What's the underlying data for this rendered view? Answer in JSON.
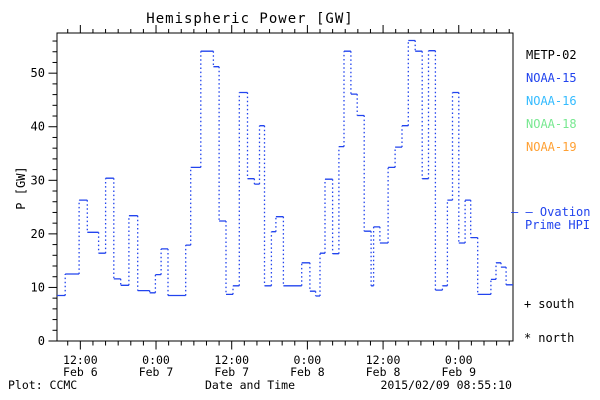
{
  "title": "Hemispheric Power [GW]",
  "axes": {
    "ylabel": "P [GW]",
    "xlabel": "Date and Time",
    "y_ticks": [
      0,
      10,
      20,
      30,
      40,
      50
    ],
    "y_minor_step": 2,
    "x_minor_step_hours": 2,
    "x_ticks": [
      {
        "t": 12,
        "time": "12:00",
        "date": "Feb 6"
      },
      {
        "t": 24,
        "time": "0:00",
        "date": "Feb 7"
      },
      {
        "t": 36,
        "time": "12:00",
        "date": "Feb 7"
      },
      {
        "t": 48,
        "time": "0:00",
        "date": "Feb 8"
      },
      {
        "t": 60,
        "time": "12:00",
        "date": "Feb 8"
      },
      {
        "t": 72,
        "time": "0:00",
        "date": "Feb 9"
      }
    ]
  },
  "legend": {
    "satellites": [
      {
        "label": "METP-02",
        "color": "#000000"
      },
      {
        "label": "NOAA-15",
        "color": "#2244ee"
      },
      {
        "label": "NOAA-16",
        "color": "#33bbff"
      },
      {
        "label": "NOAA-18",
        "color": "#77e890"
      },
      {
        "label": "NOAA-19",
        "color": "#ffa033"
      }
    ],
    "model": {
      "marker": "– –",
      "line1": "Ovation",
      "line2": "Prime HPI",
      "color": "#2244ee"
    }
  },
  "annotations": {
    "south": {
      "symbol": "+",
      "label": "south"
    },
    "north": {
      "symbol": "*",
      "label": "north"
    }
  },
  "footer": {
    "left": "Plot: CCMC",
    "center": "Date and Time",
    "right": "2015/02/09 08:55:10"
  },
  "colors": {
    "axis": "#000000",
    "line": "#2244ee",
    "background": "#ffffff"
  },
  "chart_data": {
    "type": "line",
    "step": true,
    "title": "Hemispheric Power [GW]",
    "xlabel": "Date and Time",
    "ylabel": "P [GW]",
    "x_unit": "hours since 2015-02-06 00:00",
    "x_range": [
      8.3,
      80.6
    ],
    "y_range": [
      0,
      57.5
    ],
    "grid": false,
    "legend_position": "right",
    "series": [
      {
        "name": "Ovation Prime HPI",
        "color": "#2244ee",
        "end_t": 80.6,
        "steps": [
          [
            8.3,
            8.5
          ],
          [
            9.6,
            12.5
          ],
          [
            11.8,
            26.3
          ],
          [
            13.1,
            20.3
          ],
          [
            14.9,
            16.4
          ],
          [
            16.0,
            30.4
          ],
          [
            17.3,
            11.6
          ],
          [
            18.4,
            10.4
          ],
          [
            19.7,
            23.4
          ],
          [
            21.1,
            9.4
          ],
          [
            23.0,
            9.0
          ],
          [
            23.9,
            12.4
          ],
          [
            24.8,
            17.2
          ],
          [
            25.9,
            8.5
          ],
          [
            28.7,
            17.9
          ],
          [
            29.5,
            32.4
          ],
          [
            31.1,
            54.1
          ],
          [
            33.1,
            51.2
          ],
          [
            34.0,
            22.4
          ],
          [
            35.1,
            8.7
          ],
          [
            36.2,
            10.3
          ],
          [
            37.2,
            46.4
          ],
          [
            38.5,
            30.3
          ],
          [
            39.6,
            29.3
          ],
          [
            40.4,
            40.2
          ],
          [
            41.2,
            10.3
          ],
          [
            42.3,
            20.4
          ],
          [
            43.0,
            23.2
          ],
          [
            44.2,
            10.3
          ],
          [
            47.1,
            14.6
          ],
          [
            48.4,
            9.3
          ],
          [
            49.3,
            8.4
          ],
          [
            50.0,
            16.4
          ],
          [
            50.8,
            30.2
          ],
          [
            52.0,
            16.3
          ],
          [
            53.0,
            36.3
          ],
          [
            53.8,
            54.1
          ],
          [
            54.9,
            46.1
          ],
          [
            55.9,
            42.1
          ],
          [
            57.0,
            20.5
          ],
          [
            58.1,
            10.3
          ],
          [
            58.5,
            21.3
          ],
          [
            59.5,
            18.3
          ],
          [
            60.8,
            32.4
          ],
          [
            61.9,
            36.2
          ],
          [
            63.0,
            40.2
          ],
          [
            64.0,
            56.1
          ],
          [
            65.1,
            54.1
          ],
          [
            66.2,
            30.3
          ],
          [
            67.2,
            54.2
          ],
          [
            68.3,
            9.5
          ],
          [
            69.4,
            10.3
          ],
          [
            70.2,
            26.3
          ],
          [
            71.0,
            46.4
          ],
          [
            72.0,
            18.3
          ],
          [
            73.0,
            26.3
          ],
          [
            73.9,
            19.3
          ],
          [
            75.0,
            8.7
          ],
          [
            77.1,
            11.5
          ],
          [
            77.9,
            14.6
          ],
          [
            78.7,
            13.8
          ],
          [
            79.5,
            10.5
          ]
        ]
      }
    ]
  }
}
